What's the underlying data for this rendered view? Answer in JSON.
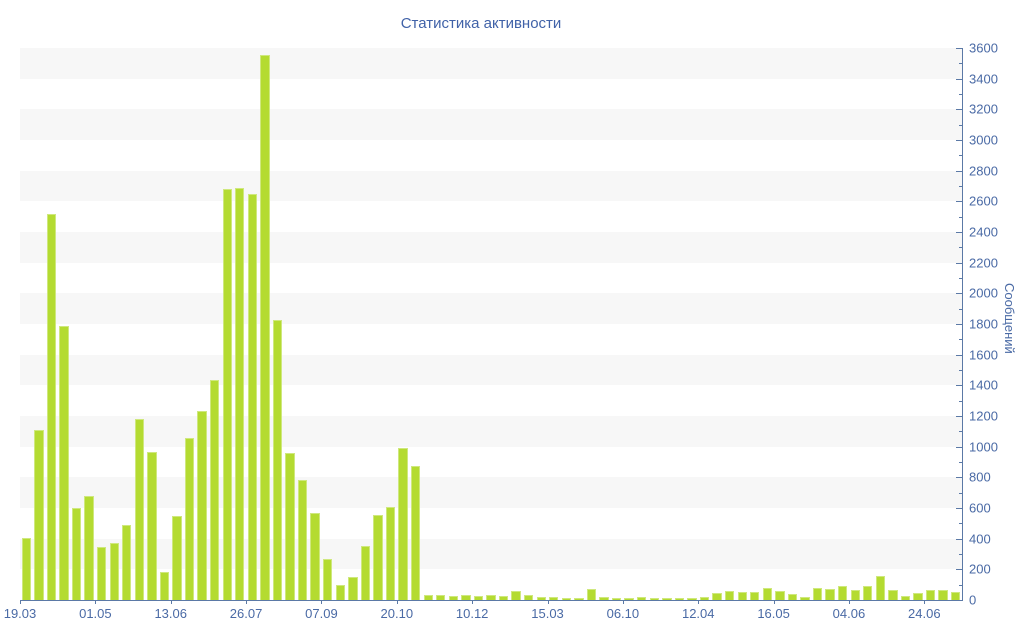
{
  "chart_data": {
    "type": "bar",
    "title": "Статистика активности",
    "xlabel": "",
    "ylabel": "Сообщений",
    "ylim": [
      0,
      3600
    ],
    "y_major_step": 200,
    "y_minor_step": 100,
    "grid": "alternating-horizontal-stripes",
    "legend": "none",
    "x_tick_labels": [
      "19.03",
      "01.05",
      "13.06",
      "26.07",
      "07.09",
      "20.10",
      "10.12",
      "15.03",
      "06.10",
      "12.04",
      "16.05",
      "04.06",
      "24.06"
    ],
    "x_tick_every_n_bars": 6,
    "values": [
      405,
      1110,
      2520,
      1790,
      600,
      680,
      345,
      375,
      490,
      1180,
      965,
      180,
      550,
      1055,
      1230,
      1435,
      2680,
      2685,
      2645,
      3555,
      1825,
      960,
      780,
      565,
      270,
      100,
      150,
      355,
      555,
      605,
      990,
      875,
      30,
      35,
      28,
      35,
      28,
      33,
      28,
      57,
      33,
      22,
      18,
      13,
      10,
      72,
      20,
      11,
      11,
      18,
      15,
      13,
      13,
      15,
      18,
      43,
      61,
      50,
      52,
      76,
      61,
      40,
      18,
      79,
      72,
      94,
      66,
      94,
      155,
      66,
      28,
      43,
      66,
      66,
      50
    ]
  },
  "colors": {
    "bar_fill": "#b4db31",
    "bar_edge": "#cfe87e",
    "axis": "#5b79a6",
    "label": "#4a6aa5",
    "title": "#4062a8",
    "stripe": "#f7f7f7",
    "background": "#ffffff"
  }
}
